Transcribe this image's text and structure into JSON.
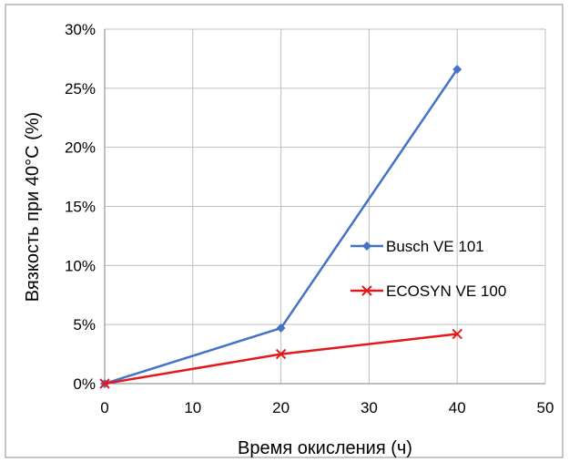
{
  "chart_data": {
    "type": "line",
    "xlabel": "Время окисления (ч)",
    "ylabel": "Вязкость при 40°C (%)",
    "xlim": [
      0,
      50
    ],
    "ylim": [
      0,
      0.3
    ],
    "xticks": [
      "0",
      "10",
      "20",
      "30",
      "40",
      "50"
    ],
    "yticks": [
      "0%",
      "5%",
      "10%",
      "15%",
      "20%",
      "25%",
      "30%"
    ],
    "grid": true,
    "legend_position": "right",
    "series": [
      {
        "name": "Busch VE 101",
        "color": "#4472C4",
        "marker": "diamond",
        "x": [
          0,
          20,
          40
        ],
        "y": [
          0.0,
          0.047,
          0.266
        ]
      },
      {
        "name": "ECOSYN VE 100",
        "color": "#E31A1C",
        "marker": "x",
        "x": [
          0,
          20,
          40
        ],
        "y": [
          0.0,
          0.025,
          0.042
        ]
      }
    ]
  }
}
